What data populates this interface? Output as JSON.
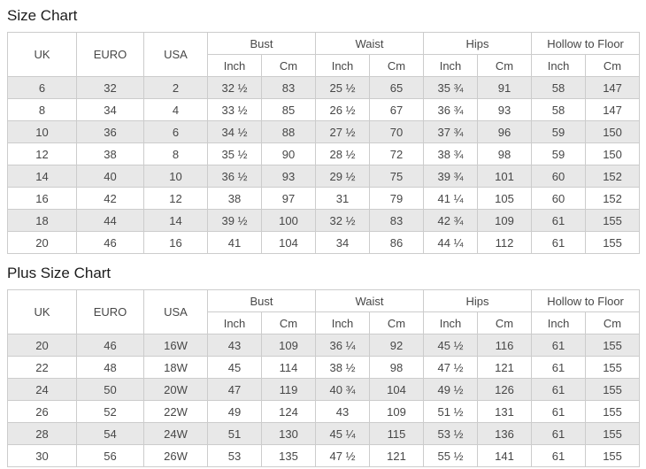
{
  "colors": {
    "stripe": "#e8e8e8",
    "border": "#cccccc",
    "table_text": "#474747",
    "title_text": "#1c1c1c",
    "background": "#ffffff"
  },
  "chart_data": [
    {
      "type": "table",
      "title": "Size Chart",
      "headers": {
        "uk": "UK",
        "euro": "EURO",
        "usa": "USA",
        "bust": "Bust",
        "waist": "Waist",
        "hips": "Hips",
        "hollow": "Hollow to Floor",
        "inch": "Inch",
        "cm": "Cm"
      },
      "column_layout": [
        "UK",
        "EURO",
        "USA",
        "Bust Inch",
        "Bust Cm",
        "Waist Inch",
        "Waist Cm",
        "Hips Inch",
        "Hips Cm",
        "Hollow to Floor Inch",
        "Hollow to Floor Cm"
      ],
      "rows": [
        [
          "6",
          "32",
          "2",
          "32 ½",
          "83",
          "25 ½",
          "65",
          "35 ¾",
          "91",
          "58",
          "147"
        ],
        [
          "8",
          "34",
          "4",
          "33 ½",
          "85",
          "26 ½",
          "67",
          "36 ¾",
          "93",
          "58",
          "147"
        ],
        [
          "10",
          "36",
          "6",
          "34 ½",
          "88",
          "27 ½",
          "70",
          "37 ¾",
          "96",
          "59",
          "150"
        ],
        [
          "12",
          "38",
          "8",
          "35 ½",
          "90",
          "28 ½",
          "72",
          "38 ¾",
          "98",
          "59",
          "150"
        ],
        [
          "14",
          "40",
          "10",
          "36 ½",
          "93",
          "29 ½",
          "75",
          "39 ¾",
          "101",
          "60",
          "152"
        ],
        [
          "16",
          "42",
          "12",
          "38",
          "97",
          "31",
          "79",
          "41 ¼",
          "105",
          "60",
          "152"
        ],
        [
          "18",
          "44",
          "14",
          "39 ½",
          "100",
          "32 ½",
          "83",
          "42 ¾",
          "109",
          "61",
          "155"
        ],
        [
          "20",
          "46",
          "16",
          "41",
          "104",
          "34",
          "86",
          "44 ¼",
          "112",
          "61",
          "155"
        ]
      ]
    },
    {
      "type": "table",
      "title": "Plus Size Chart",
      "headers": {
        "uk": "UK",
        "euro": "EURO",
        "usa": "USA",
        "bust": "Bust",
        "waist": "Waist",
        "hips": "Hips",
        "hollow": "Hollow to Floor",
        "inch": "Inch",
        "cm": "Cm"
      },
      "column_layout": [
        "UK",
        "EURO",
        "USA",
        "Bust Inch",
        "Bust Cm",
        "Waist Inch",
        "Waist Cm",
        "Hips Inch",
        "Hips Cm",
        "Hollow to Floor Inch",
        "Hollow to Floor Cm"
      ],
      "rows": [
        [
          "20",
          "46",
          "16W",
          "43",
          "109",
          "36 ¼",
          "92",
          "45 ½",
          "116",
          "61",
          "155"
        ],
        [
          "22",
          "48",
          "18W",
          "45",
          "114",
          "38 ½",
          "98",
          "47 ½",
          "121",
          "61",
          "155"
        ],
        [
          "24",
          "50",
          "20W",
          "47",
          "119",
          "40 ¾",
          "104",
          "49 ½",
          "126",
          "61",
          "155"
        ],
        [
          "26",
          "52",
          "22W",
          "49",
          "124",
          "43",
          "109",
          "51 ½",
          "131",
          "61",
          "155"
        ],
        [
          "28",
          "54",
          "24W",
          "51",
          "130",
          "45 ¼",
          "115",
          "53 ½",
          "136",
          "61",
          "155"
        ],
        [
          "30",
          "56",
          "26W",
          "53",
          "135",
          "47 ½",
          "121",
          "55 ½",
          "141",
          "61",
          "155"
        ]
      ]
    }
  ]
}
